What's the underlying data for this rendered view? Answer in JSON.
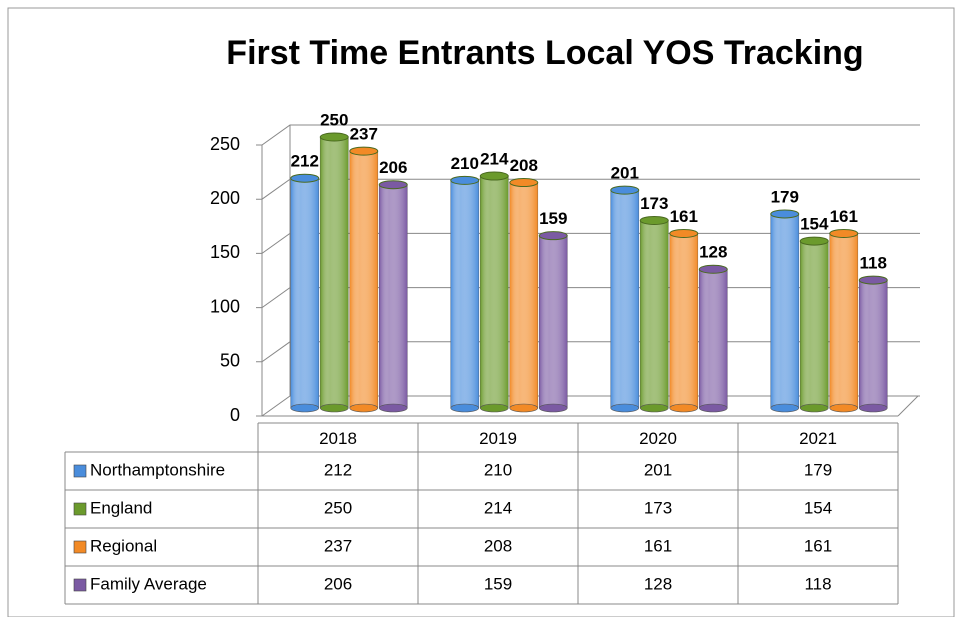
{
  "chart_data": {
    "type": "bar",
    "title": "First Time Entrants Local YOS Tracking",
    "categories": [
      "2018",
      "2019",
      "2020",
      "2021"
    ],
    "series": [
      {
        "name": "Northamptonshire",
        "color": "#4a8ddc",
        "values": [
          212,
          210,
          201,
          179
        ]
      },
      {
        "name": "England",
        "color": "#6b9a2c",
        "values": [
          250,
          214,
          173,
          154
        ]
      },
      {
        "name": "Regional",
        "color": "#f28a26",
        "values": [
          237,
          208,
          161,
          161
        ]
      },
      {
        "name": "Family Average",
        "color": "#7b5aa3",
        "values": [
          206,
          159,
          128,
          118
        ]
      }
    ],
    "ylim": [
      0,
      250
    ],
    "yticks": [
      0,
      50,
      100,
      150,
      200,
      250
    ],
    "grid": true,
    "data_table": true
  }
}
